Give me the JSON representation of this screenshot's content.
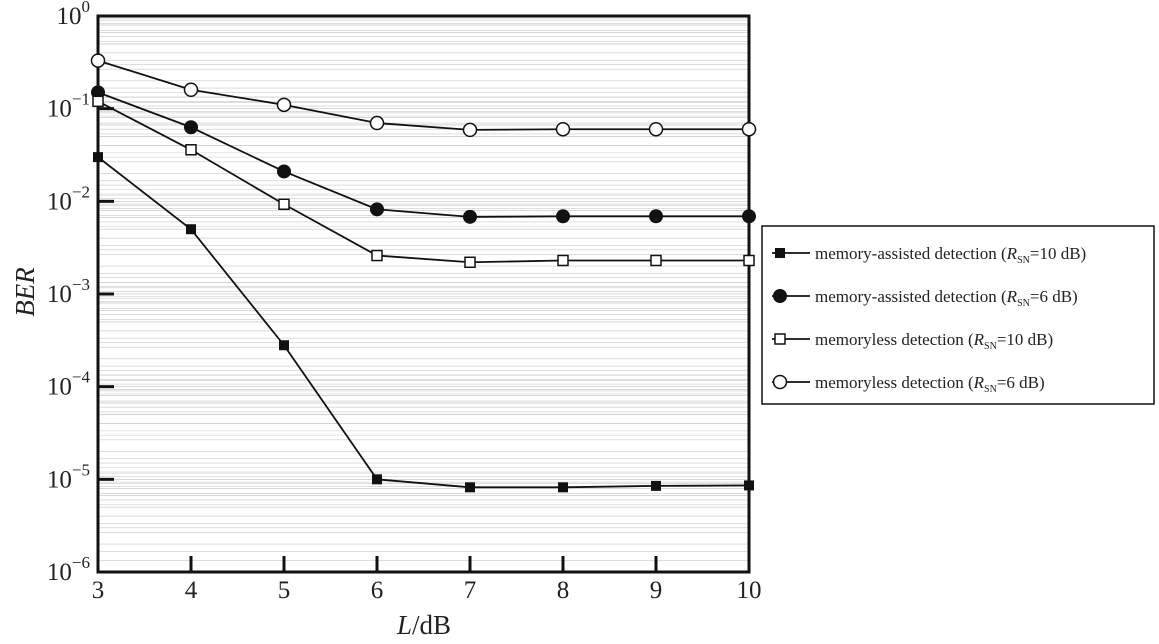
{
  "chart_data": {
    "type": "line",
    "title": "",
    "xlabel_italic": "L",
    "xlabel_rest": "/dB",
    "ylabel": "BER",
    "x": [
      3,
      4,
      5,
      6,
      7,
      8,
      9,
      10
    ],
    "xlim": [
      3,
      10
    ],
    "ylim": [
      1e-06,
      1
    ],
    "yscale": "log",
    "grid": "horizontal minor lines",
    "legend_position": "right, outside plot",
    "x_ticks": [
      "3",
      "4",
      "5",
      "6",
      "7",
      "8",
      "9",
      "10"
    ],
    "y_ticks": [
      {
        "base": "10",
        "exp": "0"
      },
      {
        "base": "10",
        "exp": "−1"
      },
      {
        "base": "10",
        "exp": "−2"
      },
      {
        "base": "10",
        "exp": "−3"
      },
      {
        "base": "10",
        "exp": "−4"
      },
      {
        "base": "10",
        "exp": "−5"
      },
      {
        "base": "10",
        "exp": "−6"
      }
    ],
    "series": [
      {
        "pre": "memory-assisted detection (",
        "r": "R",
        "sub": "SN",
        "post": "=10 dB)",
        "marker": "square-filled",
        "values": [
          0.03,
          0.005,
          0.00028,
          1e-05,
          8.2e-06,
          8.2e-06,
          8.5e-06,
          8.6e-06
        ]
      },
      {
        "pre": "memory-assisted detection (",
        "r": "R",
        "sub": "SN",
        "post": "=6 dB)",
        "marker": "circle-filled",
        "values": [
          0.15,
          0.063,
          0.021,
          0.0082,
          0.0068,
          0.0069,
          0.0069,
          0.0069
        ]
      },
      {
        "pre": "memoryless detection (",
        "r": "R",
        "sub": "SN",
        "post": "=10 dB)",
        "marker": "square-open",
        "values": [
          0.12,
          0.036,
          0.0093,
          0.0026,
          0.0022,
          0.0023,
          0.0023,
          0.0023
        ]
      },
      {
        "pre": "memoryless detection (",
        "r": "R",
        "sub": "SN",
        "post": "=6 dB)",
        "marker": "circle-open",
        "values": [
          0.33,
          0.16,
          0.11,
          0.07,
          0.059,
          0.06,
          0.06,
          0.06
        ]
      }
    ]
  }
}
